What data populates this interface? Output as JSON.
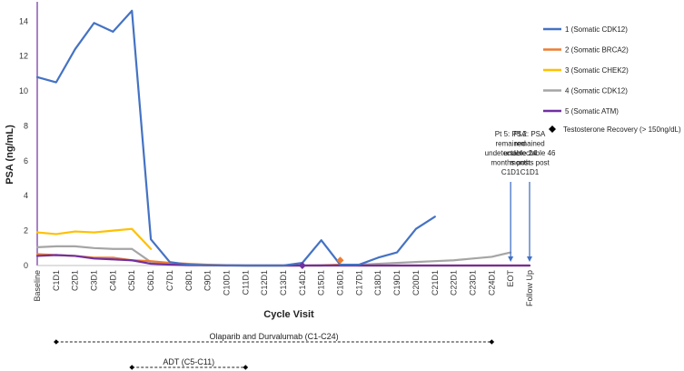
{
  "chart_data": {
    "type": "line",
    "title": "",
    "xlabel": "Cycle Visit",
    "ylabel": "PSA (ng/mL)",
    "ylim": [
      0,
      15
    ],
    "yticks": [
      0,
      2,
      4,
      6,
      8,
      10,
      12,
      14
    ],
    "categories": [
      "Baseline",
      "C1D1",
      "C2D1",
      "C3D1",
      "C4D1",
      "C5D1",
      "C6D1",
      "C7D1",
      "C8D1",
      "C9D1",
      "C10D1",
      "C11D1",
      "C12D1",
      "C13D1",
      "C14D1",
      "C15D1",
      "C16D1",
      "C17D1",
      "C18D1",
      "C19D1",
      "C20D1",
      "C21D1",
      "C22D1",
      "C23D1",
      "C24D1",
      "EOT",
      "Follow Up"
    ],
    "series": [
      {
        "name": "1 (Somatic CDK12)",
        "color": "#4472C4",
        "values": [
          10.8,
          10.5,
          12.4,
          13.9,
          13.4,
          14.6,
          1.5,
          0.2,
          0.05,
          0.02,
          0.01,
          0.0,
          0.0,
          0.0,
          0.15,
          1.45,
          0.05,
          0.05,
          0.45,
          0.75,
          2.1,
          2.8,
          null,
          null,
          null,
          null,
          null
        ]
      },
      {
        "name": "2 (Somatic BRCA2)",
        "color": "#ED7D31",
        "values": [
          0.65,
          0.6,
          0.55,
          0.45,
          0.45,
          0.3,
          0.25,
          0.15,
          0.1,
          0.05,
          0.02,
          0.0,
          0.0,
          0.0,
          0.0,
          0.0,
          0.05,
          0.0,
          0.0,
          0.0,
          0.0,
          0.0,
          0.0,
          0.0,
          0.0,
          0.0,
          0.0
        ]
      },
      {
        "name": "3 (Somatic CHEK2)",
        "color": "#FFC000",
        "values": [
          1.9,
          1.8,
          1.95,
          1.9,
          2.0,
          2.1,
          0.95,
          null,
          null,
          null,
          null,
          null,
          null,
          null,
          null,
          null,
          null,
          null,
          null,
          null,
          null,
          null,
          null,
          null,
          null,
          null,
          null
        ]
      },
      {
        "name": "4 (Somatic CDK12)",
        "color": "#A5A5A5",
        "values": [
          1.05,
          1.1,
          1.1,
          1.0,
          0.95,
          0.95,
          0.2,
          0.1,
          0.05,
          0.02,
          0.01,
          0.0,
          0.0,
          0.0,
          0.0,
          0.02,
          0.05,
          0.05,
          0.1,
          0.15,
          0.2,
          0.25,
          0.3,
          0.4,
          0.5,
          0.75,
          null
        ]
      },
      {
        "name": "5 (Somatic ATM)",
        "color": "#7030A0",
        "values": [
          0.55,
          0.6,
          0.55,
          0.4,
          0.35,
          0.3,
          0.1,
          0.05,
          0.02,
          0.01,
          0.0,
          0.0,
          0.0,
          0.0,
          0.0,
          0.0,
          0.0,
          0.0,
          0.0,
          0.0,
          0.0,
          0.0,
          0.0,
          0.0,
          0.0,
          0.0,
          0.0
        ]
      }
    ],
    "markers": [
      {
        "label": "Testosterone Recovery (> 150ng/dL)",
        "shape": "diamond",
        "color": "#000000",
        "points": [
          {
            "category": "C14D1",
            "value": 0.0,
            "color": "#7030A0"
          },
          {
            "category": "C16D1",
            "value": 0.3,
            "color": "#ED7D31"
          }
        ]
      }
    ],
    "annotations": [
      {
        "text_lines": [
          "Pt 5: PSA",
          "remained",
          "undetectable 24",
          "months post",
          "C1D1"
        ],
        "category": "EOT",
        "arrow_to_value": 0.0
      },
      {
        "text_lines": [
          "Pt 2: PSA",
          "remained",
          "undetectable 46",
          "months post",
          "C1D1"
        ],
        "category": "Follow Up",
        "arrow_to_value": 0.0
      }
    ],
    "timeline": [
      {
        "label": "Olaparib and Durvalumab (C1-C24)",
        "start": "C1D1",
        "end": "C24D1"
      },
      {
        "label": "ADT (C5-C11)",
        "start": "C5D1",
        "end": "C11D1"
      }
    ]
  }
}
